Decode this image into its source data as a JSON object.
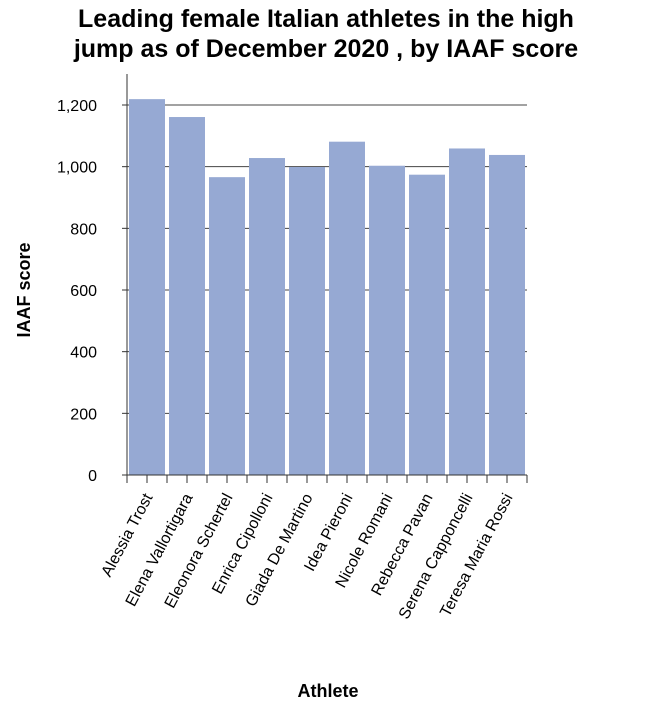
{
  "chart_data": {
    "type": "bar",
    "title_lines": [
      "Leading female Italian athletes in the high",
      "jump as of December 2020 , by IAAF score"
    ],
    "xlabel": "Athlete",
    "ylabel": "IAAF score",
    "categories": [
      "Alessia Trost",
      "Elena Vallortigara",
      "Eleonora Schertel",
      "Enrica Cipolloni",
      "Giada De Martino",
      "Idea Pieroni",
      "Nicole Romani",
      "Rebecca Pavan",
      "Serena Capponcelli",
      "Teresa Maria Rossi"
    ],
    "values": [
      1219,
      1161,
      966,
      1028,
      999,
      1081,
      1003,
      974,
      1059,
      1038
    ],
    "ylim": [
      0,
      1200
    ],
    "yticks": [
      0,
      200,
      400,
      600,
      800,
      1000,
      1200
    ],
    "ytick_labels": [
      "0",
      "200",
      "400",
      "600",
      "800",
      "1,000",
      "1,200"
    ],
    "bar_color": "#96a9d3",
    "grid": true,
    "legend": "none"
  }
}
